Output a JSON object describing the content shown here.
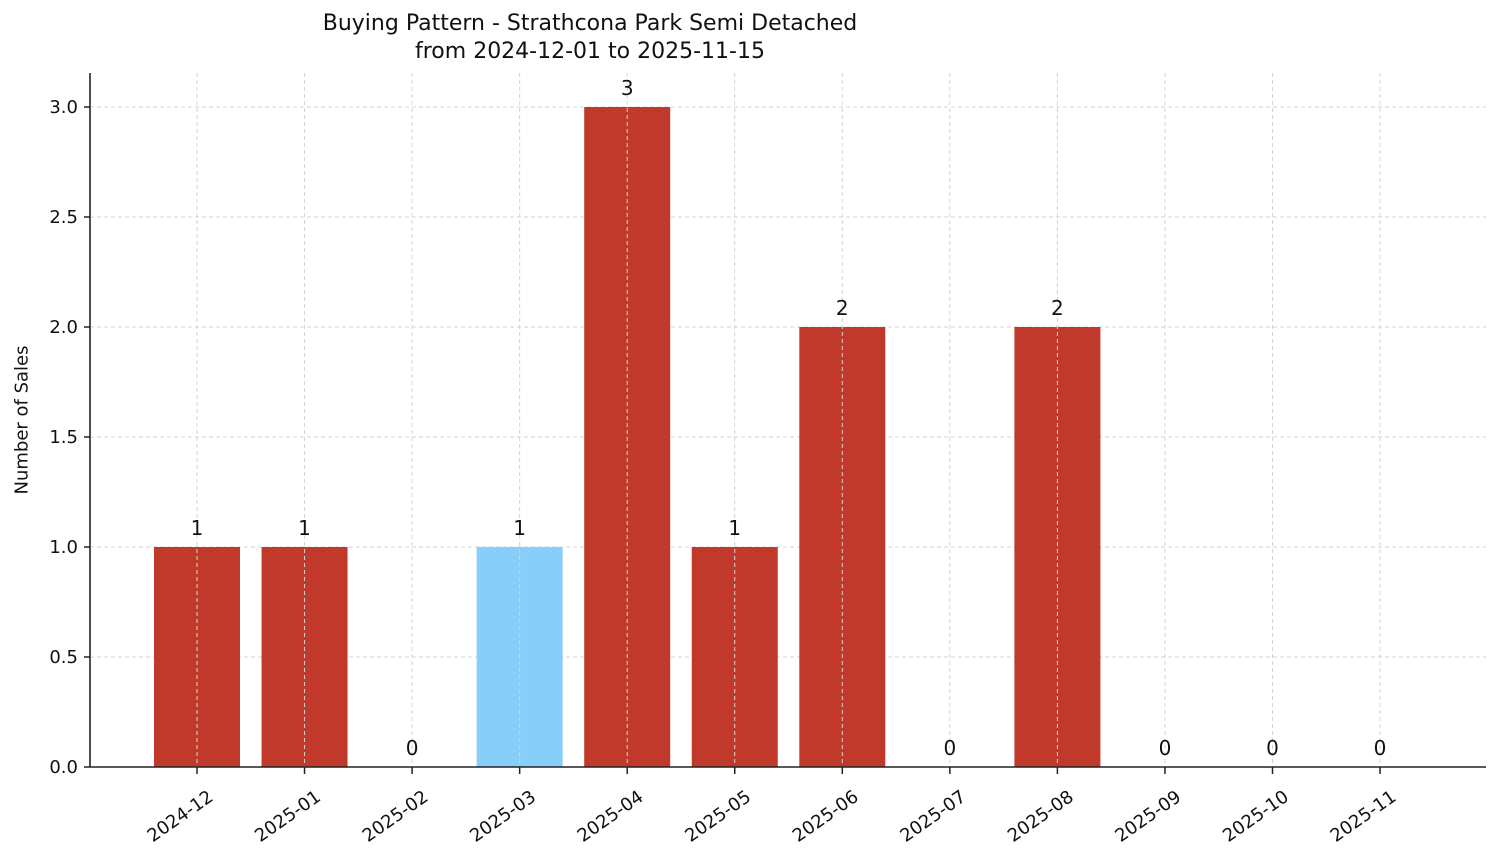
{
  "chart_data": {
    "type": "bar",
    "title": "Buying Pattern - Strathcona Park Semi Detached",
    "subtitle": "from 2024-12-01 to 2025-11-15",
    "xlabel": "",
    "ylabel": "Number of Sales",
    "categories": [
      "2024-12",
      "2025-01",
      "2025-02",
      "2025-03",
      "2025-04",
      "2025-05",
      "2025-06",
      "2025-07",
      "2025-08",
      "2025-09",
      "2025-10",
      "2025-11"
    ],
    "values": [
      1,
      1,
      0,
      1,
      3,
      1,
      2,
      0,
      2,
      0,
      0,
      0
    ],
    "bar_colors": [
      "#c0392b",
      "#c0392b",
      "#c0392b",
      "#87cefa",
      "#c0392b",
      "#c0392b",
      "#c0392b",
      "#c0392b",
      "#c0392b",
      "#c0392b",
      "#c0392b",
      "#c0392b"
    ],
    "highlighted_category": "2025-03",
    "data_labels": [
      "1",
      "1",
      "0",
      "1",
      "3",
      "1",
      "2",
      "0",
      "2",
      "0",
      "0",
      "0"
    ],
    "yticks": [
      "0.0",
      "0.5",
      "1.0",
      "1.5",
      "2.0",
      "2.5",
      "3.0"
    ],
    "ylim": [
      0,
      3.15
    ],
    "grid": true,
    "legend": null
  },
  "colors": {
    "bar": "#c0392b",
    "highlight": "#87cefa",
    "grid": "#d3d3d3",
    "axis": "#222222"
  }
}
